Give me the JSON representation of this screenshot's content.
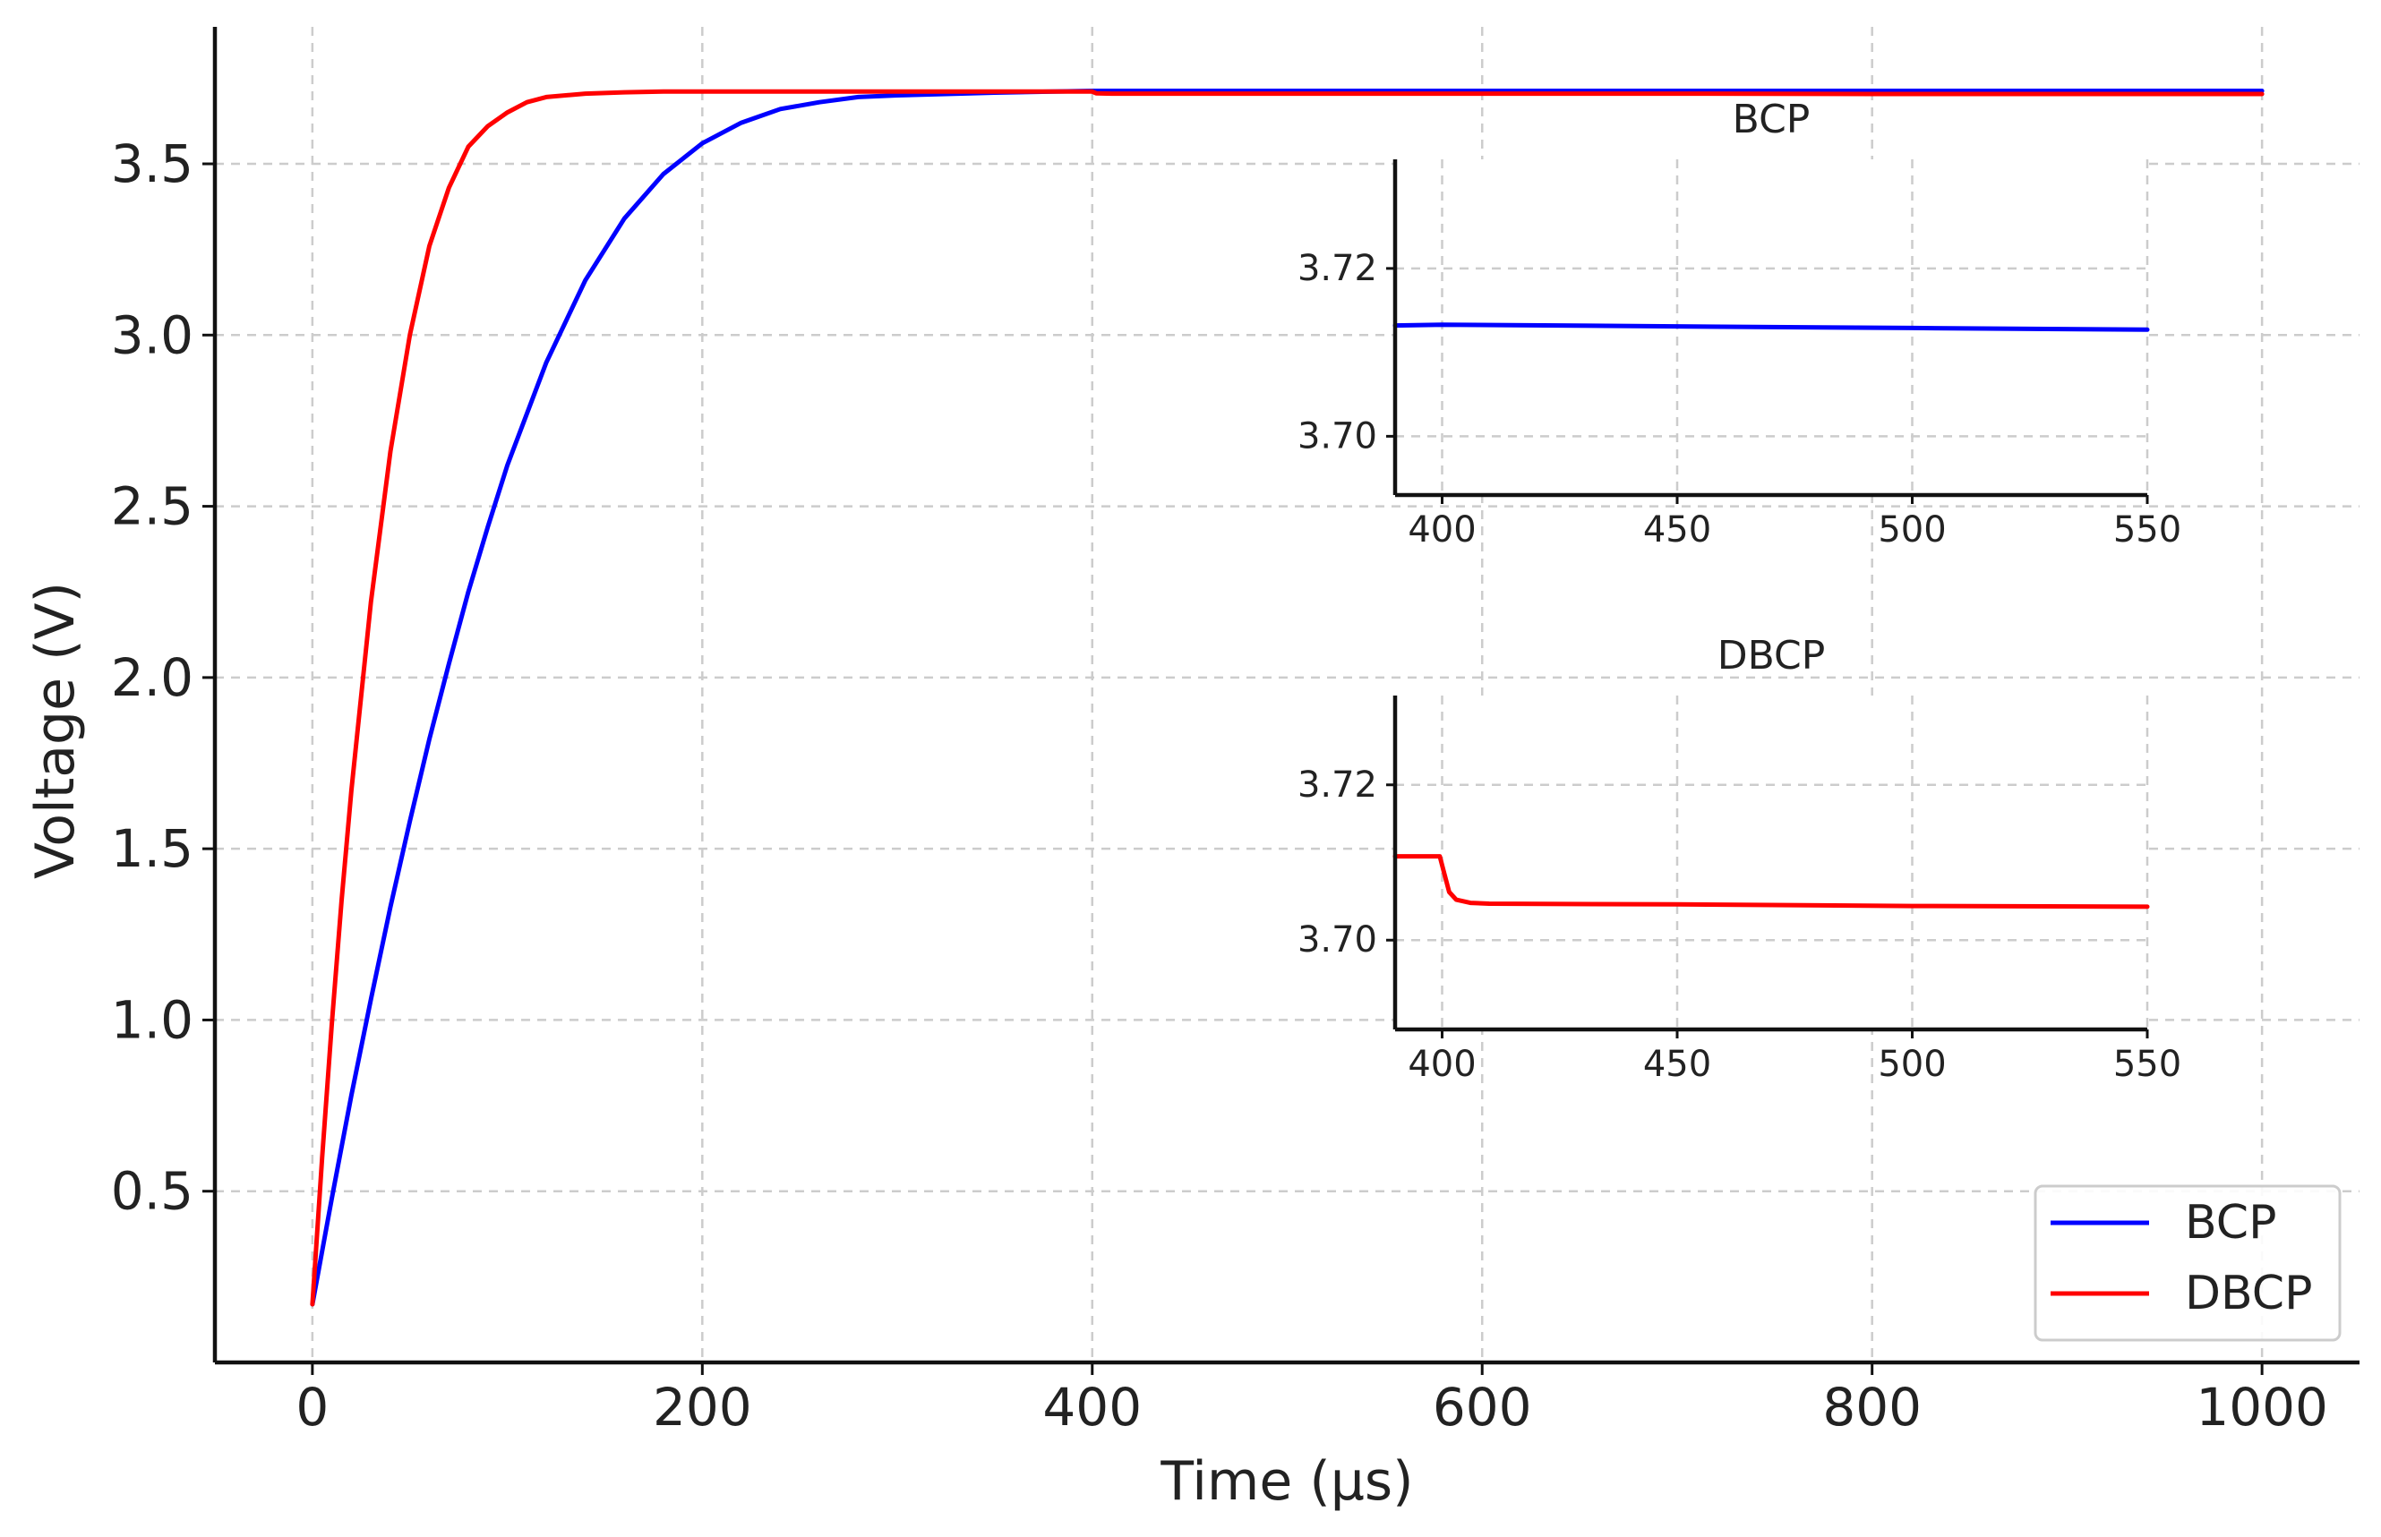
{
  "chart_data": [
    {
      "type": "line",
      "xlabel": "Time (µs)",
      "ylabel": "Voltage (V)",
      "xlim": [
        -50,
        1050
      ],
      "ylim": [
        0.0,
        3.9
      ],
      "xticks": [
        0,
        200,
        400,
        600,
        800,
        1000
      ],
      "xtick_labels": [
        "0",
        "200",
        "400",
        "600",
        "800",
        "1000"
      ],
      "yticks": [
        0.5,
        1.0,
        1.5,
        2.0,
        2.5,
        3.0,
        3.5
      ],
      "ytick_labels": [
        "0.5",
        "1.0",
        "1.5",
        "2.0",
        "2.5",
        "3.0",
        "3.5"
      ],
      "grid": true,
      "legend_position": "bottom-right",
      "series": [
        {
          "name": "BCP",
          "color": "#0000ff",
          "x": [
            0,
            10,
            20,
            30,
            40,
            50,
            60,
            70,
            80,
            90,
            100,
            120,
            140,
            160,
            180,
            200,
            220,
            240,
            260,
            280,
            300,
            350,
            400,
            500,
            600,
            700,
            800,
            900,
            1000
          ],
          "y": [
            0.17,
            0.48,
            0.78,
            1.06,
            1.33,
            1.58,
            1.82,
            2.04,
            2.25,
            2.44,
            2.62,
            2.92,
            3.16,
            3.34,
            3.47,
            3.56,
            3.62,
            3.66,
            3.68,
            3.695,
            3.7,
            3.708,
            3.713,
            3.713,
            3.713,
            3.713,
            3.713,
            3.713,
            3.713
          ]
        },
        {
          "name": "DBCP",
          "color": "#ff0000",
          "x": [
            0,
            5,
            10,
            15,
            20,
            30,
            40,
            50,
            60,
            70,
            80,
            90,
            100,
            110,
            120,
            140,
            160,
            180,
            200,
            250,
            300,
            350,
            400,
            402,
            410,
            500,
            600,
            700,
            800,
            900,
            1000
          ],
          "y": [
            0.17,
            0.6,
            0.99,
            1.35,
            1.67,
            2.22,
            2.66,
            3.0,
            3.26,
            3.43,
            3.55,
            3.61,
            3.65,
            3.68,
            3.695,
            3.705,
            3.709,
            3.711,
            3.711,
            3.711,
            3.711,
            3.711,
            3.711,
            3.706,
            3.705,
            3.705,
            3.705,
            3.705,
            3.704,
            3.704,
            3.704
          ]
        }
      ]
    },
    {
      "type": "line",
      "title": "BCP",
      "xlim": [
        390,
        550
      ],
      "ylim": [
        3.693,
        3.733
      ],
      "xticks": [
        400,
        450,
        500,
        550
      ],
      "xtick_labels": [
        "400",
        "450",
        "500",
        "550"
      ],
      "yticks": [
        3.7,
        3.72
      ],
      "ytick_labels": [
        "3.70",
        "3.72"
      ],
      "grid": true,
      "series": [
        {
          "name": "BCP",
          "color": "#0000ff",
          "x": [
            390,
            400,
            450,
            500,
            550
          ],
          "y": [
            3.7132,
            3.7133,
            3.7131,
            3.7129,
            3.7127
          ]
        }
      ]
    },
    {
      "type": "line",
      "title": "DBCP",
      "xlim": [
        390,
        550
      ],
      "ylim": [
        3.6885,
        3.7315
      ],
      "xticks": [
        400,
        450,
        500,
        550
      ],
      "xtick_labels": [
        "400",
        "450",
        "500",
        "550"
      ],
      "yticks": [
        3.7,
        3.72
      ],
      "ytick_labels": [
        "3.70",
        "3.72"
      ],
      "grid": true,
      "series": [
        {
          "name": "DBCP",
          "color": "#ff0000",
          "x": [
            390,
            399.5,
            400.5,
            401.5,
            403,
            406,
            410,
            450,
            500,
            550
          ],
          "y": [
            3.7108,
            3.7108,
            3.7085,
            3.7062,
            3.7052,
            3.7048,
            3.7047,
            3.7046,
            3.7044,
            3.7043
          ]
        }
      ]
    }
  ]
}
